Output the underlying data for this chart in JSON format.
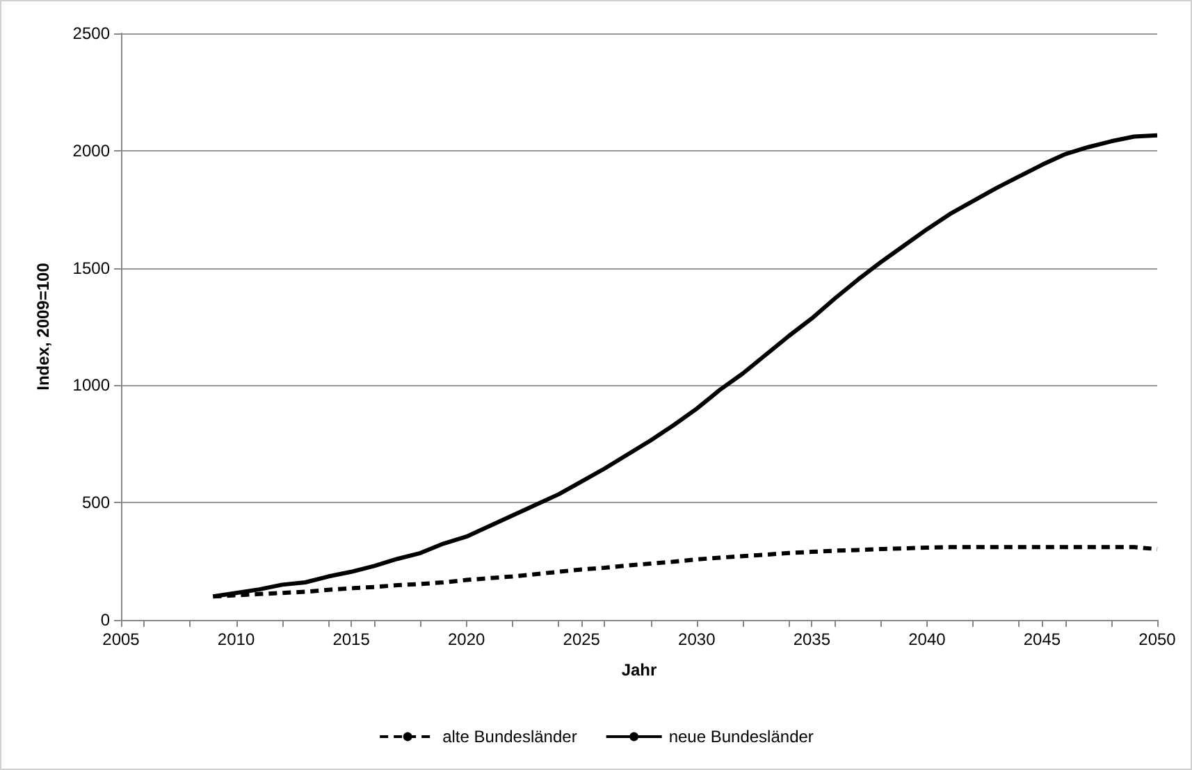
{
  "chart_data": {
    "type": "line",
    "xlabel": "Jahr",
    "ylabel": "Index, 2009=100",
    "x": [
      2009,
      2010,
      2011,
      2012,
      2013,
      2014,
      2015,
      2016,
      2017,
      2018,
      2019,
      2020,
      2021,
      2022,
      2023,
      2024,
      2025,
      2026,
      2027,
      2028,
      2029,
      2030,
      2031,
      2032,
      2033,
      2034,
      2035,
      2036,
      2037,
      2038,
      2039,
      2040,
      2041,
      2042,
      2043,
      2044,
      2045,
      2046,
      2047,
      2048,
      2049,
      2050
    ],
    "series": [
      {
        "name": "alte Bundesländer",
        "color": "#000000",
        "line_style": "dashed",
        "values": [
          100,
          105,
          110,
          115,
          120,
          128,
          135,
          140,
          148,
          153,
          160,
          170,
          178,
          185,
          195,
          205,
          215,
          222,
          232,
          240,
          248,
          258,
          265,
          272,
          278,
          285,
          290,
          295,
          298,
          302,
          305,
          308,
          310,
          310,
          310,
          310,
          310,
          310,
          310,
          310,
          310,
          302
        ]
      },
      {
        "name": "neue Bundesländer",
        "color": "#000000",
        "line_style": "solid",
        "values": [
          100,
          115,
          130,
          150,
          160,
          185,
          205,
          230,
          260,
          285,
          325,
          355,
          400,
          445,
          490,
          535,
          590,
          645,
          705,
          765,
          830,
          900,
          980,
          1050,
          1130,
          1210,
          1285,
          1370,
          1450,
          1525,
          1595,
          1665,
          1730,
          1785,
          1840,
          1890,
          1940,
          1985,
          2015,
          2040,
          2060,
          2065
        ]
      }
    ],
    "xlim": [
      2005,
      2050
    ],
    "xticks": [
      2005,
      2010,
      2015,
      2020,
      2025,
      2030,
      2035,
      2040,
      2045,
      2050
    ],
    "ylim": [
      0,
      2500
    ],
    "yticks": [
      0,
      500,
      1000,
      1500,
      2000,
      2500
    ],
    "grid": "y",
    "legend": "bottom",
    "marker": "none"
  }
}
